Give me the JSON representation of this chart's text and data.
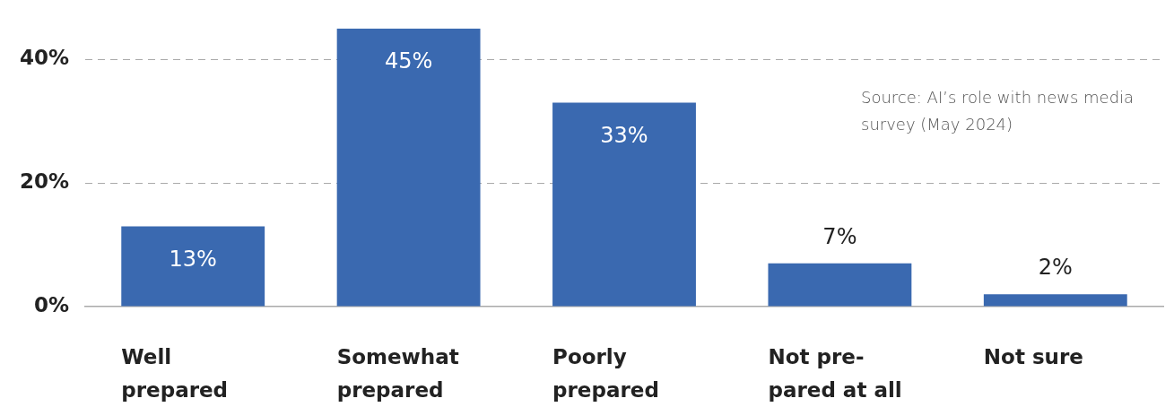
{
  "chart_data": {
    "type": "bar",
    "categories": [
      "Well\nprepared",
      "Somewhat\nprepared",
      "Poorly\nprepared",
      "Not pre-\npared at all",
      "Not sure"
    ],
    "values": [
      13,
      45,
      33,
      7,
      2
    ],
    "value_labels": [
      "13%",
      "45%",
      "33%",
      "7%",
      "2%"
    ],
    "color": "#3a69b0",
    "ylim": [
      0,
      45
    ],
    "yticks": [
      {
        "value": 0,
        "label": "0%"
      },
      {
        "value": 20,
        "label": "20%"
      },
      {
        "value": 40,
        "label": "40%"
      }
    ],
    "grid": "y",
    "legend": false,
    "annotations": [
      "Source: AI’s role with news media survey (May 2024)"
    ]
  }
}
